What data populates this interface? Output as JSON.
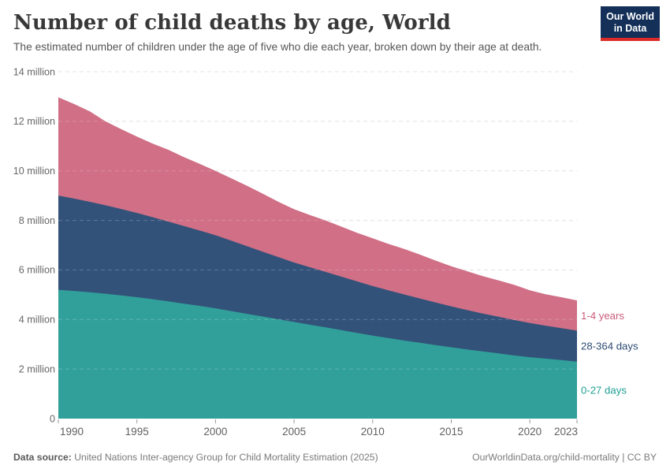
{
  "header": {
    "title": "Number of child deaths by age, World",
    "subtitle": "The estimated number of children under the age of five who die each year, broken down by their age at death.",
    "logo": {
      "line1": "Our World",
      "line2": "in Data",
      "bg_color": "#143059",
      "accent_color": "#dc2c27"
    }
  },
  "chart_data": {
    "type": "area",
    "stacked": true,
    "grid": "dashed-horizontal",
    "legend_position": "right",
    "xlim": [
      1990,
      2023
    ],
    "ylim": [
      0,
      14
    ],
    "unit": "million",
    "x": [
      1990,
      1991,
      1992,
      1993,
      1994,
      1995,
      1996,
      1997,
      1998,
      1999,
      2000,
      2001,
      2002,
      2003,
      2004,
      2005,
      2006,
      2007,
      2008,
      2009,
      2010,
      2011,
      2012,
      2013,
      2014,
      2015,
      2016,
      2017,
      2018,
      2019,
      2020,
      2021,
      2022,
      2023
    ],
    "series": [
      {
        "name": "0-27 days",
        "color": "#31a09a",
        "label_color": "#21a095",
        "values": [
          5.2,
          5.15,
          5.1,
          5.04,
          4.97,
          4.9,
          4.82,
          4.73,
          4.64,
          4.55,
          4.45,
          4.34,
          4.23,
          4.12,
          4.01,
          3.9,
          3.79,
          3.68,
          3.57,
          3.46,
          3.35,
          3.25,
          3.15,
          3.06,
          2.97,
          2.88,
          2.79,
          2.71,
          2.63,
          2.55,
          2.48,
          2.42,
          2.36,
          2.3
        ]
      },
      {
        "name": "28-364 days",
        "color": "#33527a",
        "label_color": "#2d4b73",
        "values": [
          3.8,
          3.73,
          3.65,
          3.57,
          3.49,
          3.4,
          3.31,
          3.22,
          3.13,
          3.04,
          2.95,
          2.84,
          2.73,
          2.62,
          2.51,
          2.4,
          2.32,
          2.24,
          2.16,
          2.08,
          2.0,
          1.93,
          1.86,
          1.79,
          1.72,
          1.65,
          1.59,
          1.53,
          1.48,
          1.43,
          1.38,
          1.33,
          1.29,
          1.25
        ]
      },
      {
        "name": "1-4 years",
        "color": "#d06f86",
        "label_color": "#cb5c79",
        "values": [
          3.97,
          3.82,
          3.65,
          3.39,
          3.22,
          3.08,
          2.97,
          2.9,
          2.78,
          2.69,
          2.6,
          2.52,
          2.44,
          2.34,
          2.23,
          2.15,
          2.11,
          2.08,
          2.02,
          1.96,
          1.93,
          1.87,
          1.84,
          1.77,
          1.69,
          1.62,
          1.57,
          1.51,
          1.47,
          1.42,
          1.32,
          1.27,
          1.25,
          1.22
        ]
      }
    ],
    "y_ticks": [
      {
        "value": 0,
        "label": "0"
      },
      {
        "value": 2,
        "label": "2 million"
      },
      {
        "value": 4,
        "label": "4 million"
      },
      {
        "value": 6,
        "label": "6 million"
      },
      {
        "value": 8,
        "label": "8 million"
      },
      {
        "value": 10,
        "label": "10 million"
      },
      {
        "value": 12,
        "label": "12 million"
      },
      {
        "value": 14,
        "label": "14 million"
      }
    ],
    "x_ticks": [
      1990,
      1995,
      2000,
      2005,
      2010,
      2015,
      2020,
      2023
    ]
  },
  "footer": {
    "source_label": "Data source:",
    "source_text": " United Nations Inter-agency Group for Child Mortality Estimation (2025)",
    "link": "OurWorldinData.org/child-mortality | CC BY"
  }
}
